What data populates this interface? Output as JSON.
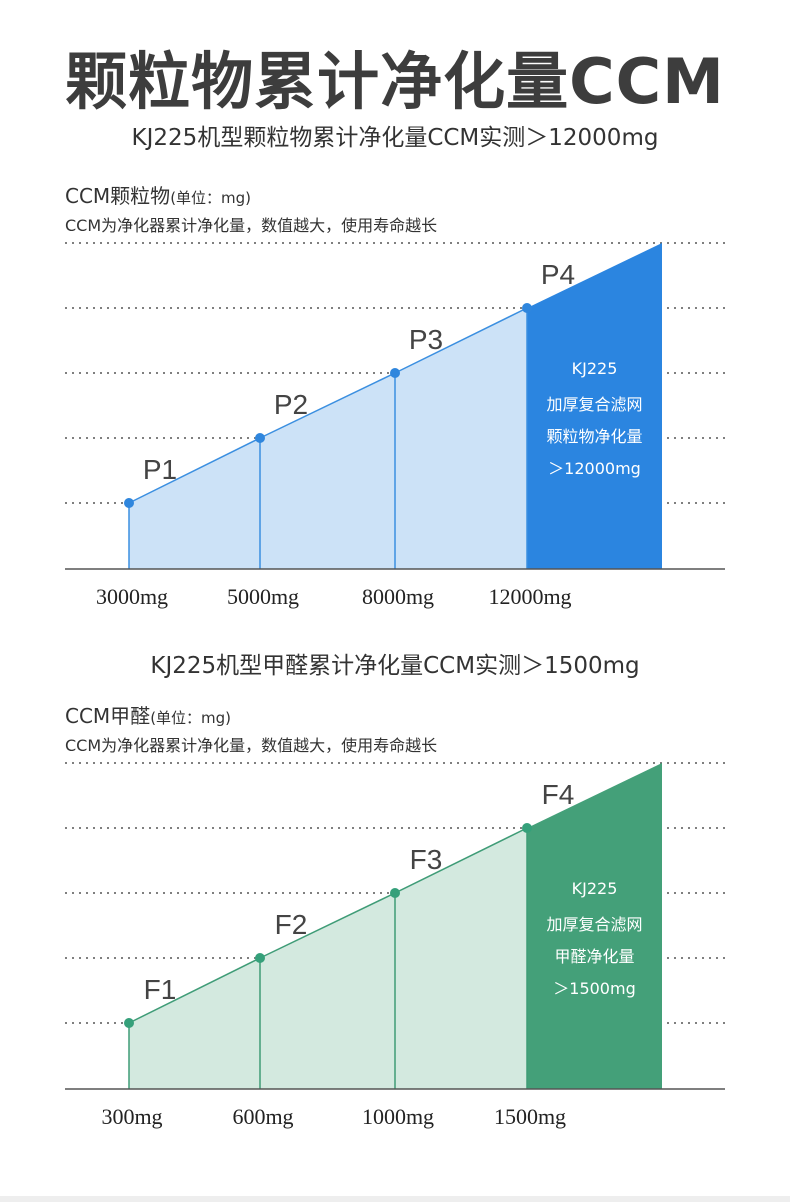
{
  "title": "颗粒物累计净化量CCM",
  "charts": [
    {
      "subtitle": "KJ225机型颗粒物累计净化量CCM实测＞12000mg",
      "ylabel_main": "CCM颗粒物",
      "ylabel_unit": "(单位：mg)",
      "note": "CCM为净化器累计净化量，数值越大，使用寿命越长",
      "colors": {
        "light_fill": "#cce2f7",
        "line": "#3b8fe0",
        "dark_fill": "#2b85e0",
        "point": "#2f86dd"
      },
      "box_lines": [
        "KJ225",
        "加厚复合滤网",
        "颗粒物净化量",
        "＞12000mg"
      ]
    },
    {
      "subtitle": "KJ225机型甲醛累计净化量CCM实测＞1500mg",
      "ylabel_main": "CCM甲醛",
      "ylabel_unit": "(单位：mg)",
      "note": "CCM为净化器累计净化量，数值越大，使用寿命越长",
      "colors": {
        "light_fill": "#d3e9df",
        "line": "#3f9c77",
        "dark_fill": "#44a079",
        "point": "#35a07a"
      },
      "box_lines": [
        "KJ225",
        "加厚复合滤网",
        "甲醛净化量",
        "＞1500mg"
      ]
    }
  ],
  "chart_data": [
    {
      "type": "area",
      "categories": [
        "3000mg",
        "5000mg",
        "8000mg",
        "12000mg"
      ],
      "point_labels": [
        "P1",
        "P2",
        "P3",
        "P4"
      ],
      "values": [
        3000,
        5000,
        8000,
        12000
      ],
      "title": "KJ225机型颗粒物累计净化量CCM实测＞12000mg",
      "ylabel": "CCM颗粒物(单位：mg)",
      "grid": "dotted horizontal",
      "highlight_last": true
    },
    {
      "type": "area",
      "categories": [
        "300mg",
        "600mg",
        "1000mg",
        "1500mg"
      ],
      "point_labels": [
        "F1",
        "F2",
        "F3",
        "F4"
      ],
      "values": [
        300,
        600,
        1000,
        1500
      ],
      "title": "KJ225机型甲醛累计净化量CCM实测＞1500mg",
      "ylabel": "CCM甲醛(单位：mg)",
      "grid": "dotted horizontal",
      "highlight_last": true
    }
  ]
}
